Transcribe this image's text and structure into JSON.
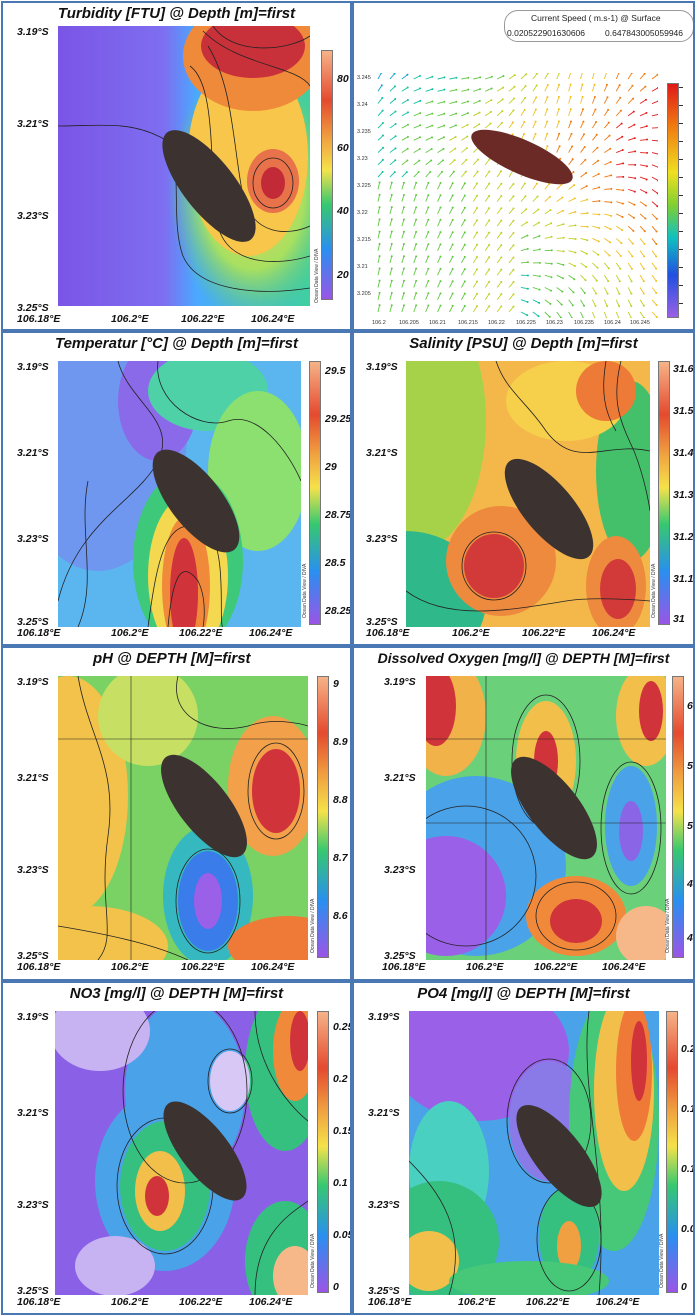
{
  "panels": {
    "turbidity": {
      "title": "Turbidity [FTU] @ Depth [m]=first",
      "y_ticks": [
        "3.19°S",
        "3.21°S",
        "3.23°S",
        "3.25°S"
      ],
      "x_ticks": [
        "106.18°E",
        "106.2°E",
        "106.22°E",
        "106.24°E"
      ],
      "colorbar_ticks": [
        "80",
        "60",
        "40",
        "20"
      ],
      "contour_labels": [
        "90",
        "70",
        "60",
        "50",
        "20",
        "0",
        "40",
        "80",
        "70",
        "60",
        "30"
      ],
      "odv_credit": "Ocean Data View / DIVA"
    },
    "current": {
      "legend_title": "Current Speed ( m.s-1) @ Surface",
      "legend_min": "0.020522901630606",
      "legend_max": "0.647843005059946",
      "y_ticks": [
        "3.245",
        "3.24",
        "3.235",
        "3.23",
        "3.225",
        "3.22",
        "3.215",
        "3.21",
        "3.205"
      ],
      "x_ticks": [
        "106.2",
        "106.205",
        "106.21",
        "106.215",
        "106.22",
        "106.225",
        "106.23",
        "106.235",
        "106.24",
        "106.245"
      ]
    },
    "temperature": {
      "title": "Temperatur [°C] @ Depth [m]=first",
      "y_ticks": [
        "3.19°S",
        "3.21°S",
        "3.23°S",
        "3.25°S"
      ],
      "x_ticks": [
        "106.18°E",
        "106.2°E",
        "106.22°E",
        "106.24°E"
      ],
      "colorbar_ticks": [
        "29.5",
        "29.25",
        "29",
        "28.75",
        "28.5",
        "28.25"
      ],
      "contour_labels": [
        "28.75",
        "28.",
        "28.",
        "29.5",
        "29",
        "28.5"
      ],
      "odv_credit": "Ocean Data View / DIVA"
    },
    "salinity": {
      "title": "Salinity [PSU] @ Depth [m]=first",
      "y_ticks": [
        "3.19°S",
        "3.21°S",
        "3.23°S",
        "3.25°S"
      ],
      "x_ticks": [
        "106.18°E",
        "106.2°E",
        "106.22°E",
        "106.24°E"
      ],
      "colorbar_ticks": [
        "31.6",
        "31.5",
        "31.4",
        "31.3",
        "31.2",
        "31.1",
        "31"
      ],
      "contour_labels": [
        "31.4",
        "31.5",
        "31.4",
        "31.5",
        "31.5",
        "31.4",
        "31.2",
        "31.3"
      ],
      "odv_credit": "Ocean Data View / DIVA"
    },
    "ph": {
      "title": "pH @ DEPTH [M]=first",
      "y_ticks": [
        "3.19°S",
        "3.21°S",
        "3.23°S",
        "3.25°S"
      ],
      "x_ticks": [
        "106.18°E",
        "106.2°E",
        "106.22°E",
        "106.24°E"
      ],
      "colorbar_ticks": [
        "9",
        "8.9",
        "8.8",
        "8.7",
        "8.6"
      ],
      "contour_labels": [
        "8.8",
        "8.7",
        "8.8",
        "8.9",
        "8.95",
        "8.65",
        "8.6",
        "8.9",
        "8.85",
        "85"
      ],
      "odv_credit": "Ocean Data View / DIVA"
    },
    "do": {
      "title": "Dissolved Oxygen [mg/l] @ DEPTH [M]=first",
      "y_ticks": [
        "3.19°S",
        "3.21°S",
        "3.23°S",
        "3.25°S"
      ],
      "x_ticks": [
        "106.18°E",
        "106.2°E",
        "106.22°E",
        "106.24°E"
      ],
      "colorbar_ticks": [
        "6",
        "5.5",
        "5",
        "4.5",
        "4"
      ],
      "contour_labels": [
        "5.75",
        "5.75",
        "5",
        "4.25",
        "3.75",
        "4.25",
        "5.75",
        "6.25"
      ],
      "odv_credit": "Ocean Data View / DIVA"
    },
    "no3": {
      "title": "NO3 [mg/l] @ DEPTH [M]=first",
      "y_ticks": [
        "3.19°S",
        "3.21°S",
        "3.23°S",
        "3.25°S"
      ],
      "x_ticks": [
        "106.18°E",
        "106.2°E",
        "106.22°E",
        "106.24°E"
      ],
      "colorbar_ticks": [
        "0.25",
        "0.2",
        "0.15",
        "0.1",
        "0.05",
        "0"
      ],
      "contour_labels": [
        "0.25",
        "0.275",
        "0.175",
        "0.1",
        "0.025",
        "0.2",
        "0.175",
        "0.025",
        "0.175",
        "0.275"
      ],
      "odv_credit": "Ocean Data View / DIVA"
    },
    "po4": {
      "title": "PO4 [mg/l] @ DEPTH [M]=first",
      "y_ticks": [
        "3.19°S",
        "3.21°S",
        "3.23°S",
        "3.25°S"
      ],
      "x_ticks": [
        "106.18°E",
        "106.2°E",
        "106.22°E",
        "106.24°E"
      ],
      "colorbar_ticks": [
        "0.2",
        "0.15",
        "0.1",
        "0.05",
        "0"
      ],
      "contour_labels": [
        "0.15",
        "0.025",
        "0.075",
        "0.05",
        "0.15",
        "0.1",
        "0.025",
        "0.15"
      ],
      "odv_credit": "Ocean Data View / DIVA"
    }
  },
  "colors": {
    "panel_border": "#4a78b5",
    "island": "#3c3331",
    "island_current": "#6b2a25"
  }
}
